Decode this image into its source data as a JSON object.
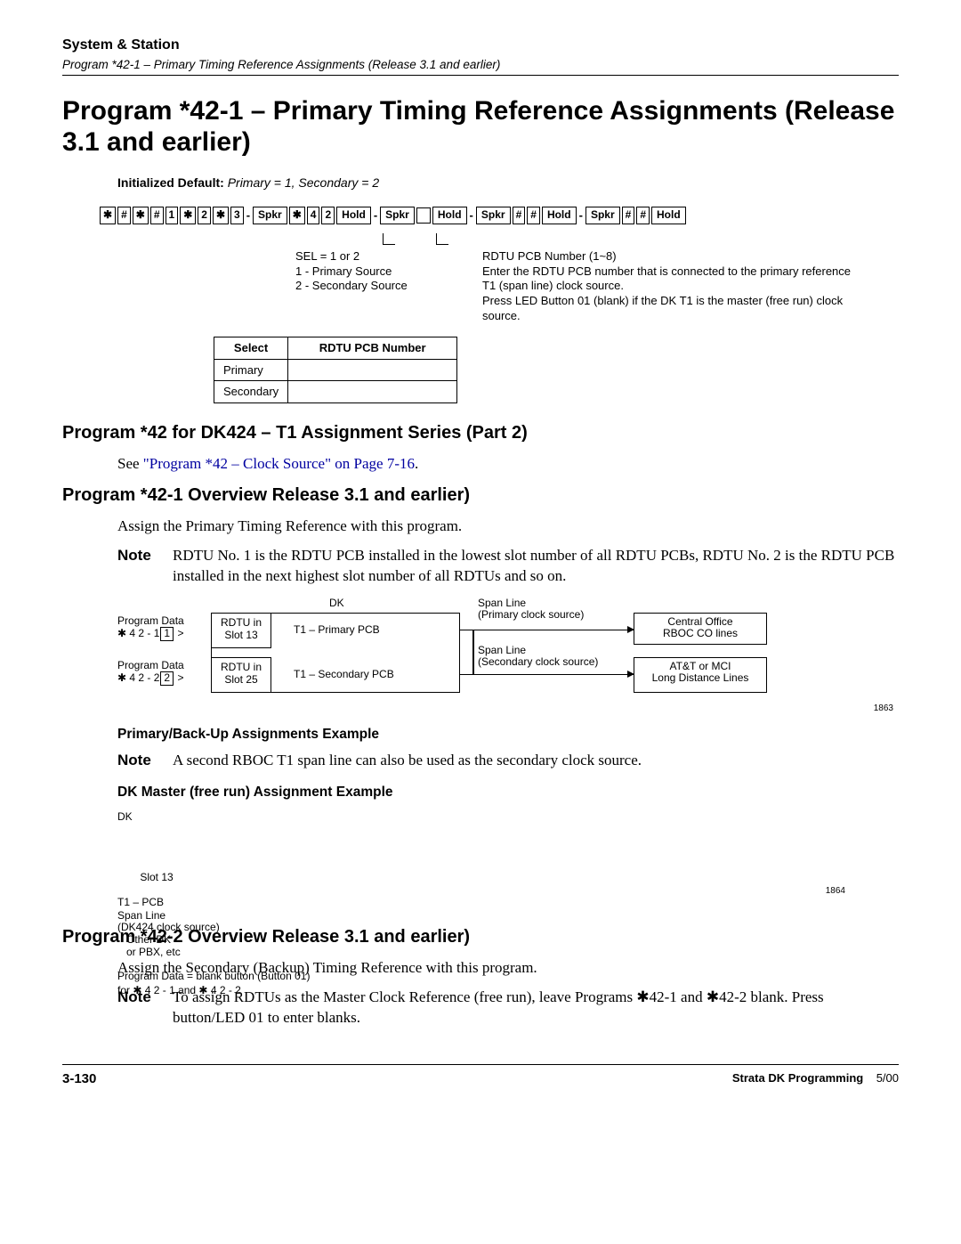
{
  "header": {
    "section": "System & Station",
    "sub": "Program *42-1 – Primary Timing Reference Assignments (Release 3.1 and earlier)"
  },
  "title": "Program *42-1 – Primary Timing Reference Assignments (Release 3.1 and earlier)",
  "init_default": {
    "label": "Initialized Default:",
    "value": "Primary = 1, Secondary = 2"
  },
  "keyseq": {
    "cells": [
      "✱",
      "#",
      "✱",
      "#",
      "1",
      "✱",
      "2",
      "✱",
      "3",
      "-",
      "Spkr",
      "✱",
      "4",
      "2",
      "Hold",
      "-",
      "Spkr",
      "BLANK",
      "Hold",
      "-",
      "Spkr",
      "#",
      "#",
      "Hold",
      "-",
      "Spkr",
      "#",
      "#",
      "Hold"
    ]
  },
  "annot": {
    "left_line1": "SEL  =  1 or 2",
    "left_line2": "1 - Primary Source",
    "left_line3": "2 - Secondary Source",
    "right_line1": "RDTU PCB Number (1~8)",
    "right_line2": "Enter the RDTU PCB number that is connected to the primary reference T1 (span line) clock source.",
    "right_line3": "Press LED Button 01 (blank) if the DK T1 is the master (free run) clock source."
  },
  "sel_table": {
    "headers": [
      "Select",
      "RDTU PCB Number"
    ],
    "rows": [
      [
        "Primary",
        ""
      ],
      [
        "Secondary",
        ""
      ]
    ]
  },
  "sec1": {
    "title": "Program *42 for DK424 – T1 Assignment Series (Part 2)",
    "see_pre": "See ",
    "see_link": "\"Program *42 – Clock Source\" on Page 7-16",
    "see_post": "."
  },
  "sec2": {
    "title": "Program *42-1 Overview Release 3.1 and earlier)",
    "p1": "Assign the Primary Timing Reference with this program.",
    "note": "RDTU No. 1 is the RDTU PCB installed in the lowest slot number of all RDTU PCBs, RDTU No. 2 is the RDTU PCB installed in the next highest slot number of all RDTUs and so on."
  },
  "diag1": {
    "pd1": "Program Data",
    "pd1v": "✱ 4 2 - 1",
    "pd1b": "1",
    "pd2": "Program Data",
    "pd2v": "✱ 4 2 - 2",
    "pd2b": "2",
    "rdtu1": "RDTU in\nSlot 13",
    "rdtu2": "RDTU in\nSlot 25",
    "t1p": "T1 – Primary PCB",
    "t1s": "T1 – Secondary PCB",
    "dk": "DK",
    "span1": "Span Line",
    "span1b": "(Primary clock source)",
    "span2": "Span Line",
    "span2b": "(Secondary clock source)",
    "co": "Central Office\nRBOC CO lines",
    "att": "AT&T or MCI\nLong Distance Lines",
    "fignum": "1863"
  },
  "sec3": {
    "h3_1": "Primary/Back-Up Assignments Example",
    "note1": "A second RBOC T1 span line can also be used as the secondary clock source.",
    "h3_2": "DK Master (free run) Assignment Example"
  },
  "diag2": {
    "dk": "DK",
    "slot": "Slot 13",
    "t1": "T1 – PCB",
    "span": "Span Line",
    "spanb": "(DK424 clock source)",
    "other": "Other DK\nor PBX, etc",
    "pdline": "Program Data = blank button (Button 01)",
    "pdfor": "for ✱ 4 2 - 1 and ✱ 4 2 - 2",
    "fignum": "1864"
  },
  "sec4": {
    "title": "Program *42-2 Overview Release 3.1 and earlier)",
    "p1": "Assign the Secondary (Backup) Timing Reference with this program.",
    "note": "To assign RDTUs as the Master Clock Reference (free run), leave Programs ✱42-1 and ✱42-2 blank. Press button/LED 01 to enter blanks."
  },
  "footer": {
    "page": "3-130",
    "title": "Strata DK Programming",
    "date": "5/00"
  },
  "labels": {
    "note": "Note"
  }
}
